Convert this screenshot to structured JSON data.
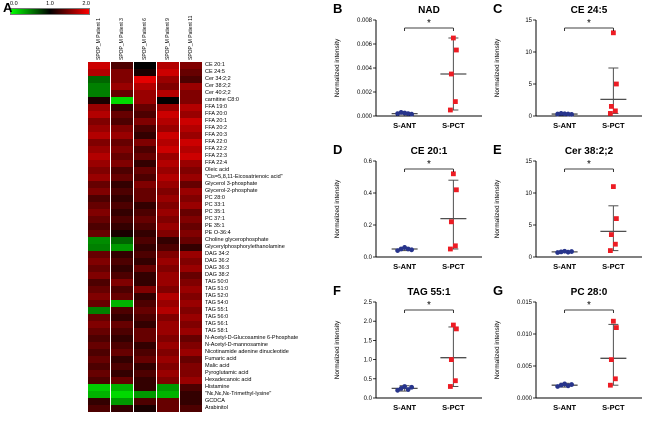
{
  "chart_data": [
    {
      "type": "heatmap",
      "panel_label": "A",
      "colorscale": {
        "labels": [
          "0.0",
          "1.0",
          "2.0"
        ],
        "colors": [
          "#00ff00",
          "#000000",
          "#ff0000"
        ]
      },
      "columns": [
        "SPOP_M Patient 1",
        "SPOP_M Patient 3",
        "SPOP_M Patient 6",
        "SPOP_M Patient 9",
        "SPOP_M Patient 11"
      ],
      "rows": [
        {
          "name": "CE 20:1",
          "values": [
            1.8,
            1.3,
            1.0,
            1.7,
            1.5
          ]
        },
        {
          "name": "CE 24:5",
          "values": [
            1.7,
            1.5,
            1.1,
            1.8,
            1.4
          ]
        },
        {
          "name": "Cer 34:2;2",
          "values": [
            0.6,
            1.5,
            1.9,
            1.6,
            1.3
          ]
        },
        {
          "name": "Cer 38:2;2",
          "values": [
            0.5,
            1.6,
            1.7,
            1.5,
            1.6
          ]
        },
        {
          "name": "Cer 40:2;2",
          "values": [
            0.5,
            1.4,
            1.6,
            1.7,
            1.5
          ]
        },
        {
          "name": "carnitine C8:0",
          "values": [
            1.1,
            0.15,
            1.6,
            1.0,
            1.5
          ]
        },
        {
          "name": "FFA 19:0",
          "values": [
            1.6,
            1.2,
            1.4,
            1.6,
            1.7
          ]
        },
        {
          "name": "FFA 20:0",
          "values": [
            1.7,
            1.4,
            1.3,
            1.8,
            1.6
          ]
        },
        {
          "name": "FFA 20:1",
          "values": [
            1.5,
            1.3,
            1.5,
            1.7,
            1.8
          ]
        },
        {
          "name": "FFA 20:2",
          "values": [
            1.6,
            1.5,
            1.3,
            1.6,
            1.7
          ]
        },
        {
          "name": "FFA 20:3",
          "values": [
            1.7,
            1.6,
            1.2,
            1.8,
            1.6
          ]
        },
        {
          "name": "FFA 22:0",
          "values": [
            1.5,
            1.4,
            1.5,
            1.7,
            1.8
          ]
        },
        {
          "name": "FFA 22:2",
          "values": [
            1.6,
            1.5,
            1.3,
            1.8,
            1.7
          ]
        },
        {
          "name": "FFA 22:3",
          "values": [
            1.7,
            1.4,
            1.4,
            1.6,
            1.8
          ]
        },
        {
          "name": "FFA 22:4",
          "values": [
            1.6,
            1.5,
            1.2,
            1.7,
            1.6
          ]
        },
        {
          "name": "Oleic acid",
          "values": [
            1.5,
            1.3,
            1.4,
            1.6,
            1.5
          ]
        },
        {
          "name": "\"Cis=5,8,11-Eicosatrienoic acid\"",
          "values": [
            1.6,
            1.4,
            1.3,
            1.7,
            1.6
          ]
        },
        {
          "name": "Glycerol 3-phosphate",
          "values": [
            1.4,
            1.2,
            1.5,
            1.6,
            1.4
          ]
        },
        {
          "name": "Glycerol-2-phosphate",
          "values": [
            1.5,
            1.3,
            1.4,
            1.5,
            1.6
          ]
        },
        {
          "name": "PC 28:0",
          "values": [
            1.3,
            1.2,
            1.4,
            1.6,
            1.5
          ]
        },
        {
          "name": "PC 33:1",
          "values": [
            1.4,
            1.3,
            1.2,
            1.5,
            1.6
          ]
        },
        {
          "name": "PC 35:1",
          "values": [
            1.5,
            1.2,
            1.3,
            1.6,
            1.4
          ]
        },
        {
          "name": "PC 37:1",
          "values": [
            1.4,
            1.3,
            1.4,
            1.5,
            1.5
          ]
        },
        {
          "name": "PE 35:1",
          "values": [
            1.3,
            1.2,
            1.3,
            1.6,
            1.4
          ]
        },
        {
          "name": "PE O-36:4",
          "values": [
            1.4,
            1.1,
            1.2,
            1.5,
            1.5
          ]
        },
        {
          "name": "Choline glycerophosphate",
          "values": [
            0.45,
            0.6,
            1.3,
            1.2,
            1.4
          ]
        },
        {
          "name": "Glycerylphosphorylethanolamine",
          "values": [
            0.5,
            0.4,
            1.2,
            1.3,
            1.2
          ]
        },
        {
          "name": "DAG 34:2",
          "values": [
            1.4,
            1.2,
            1.3,
            1.5,
            1.6
          ]
        },
        {
          "name": "DAG 36:2",
          "values": [
            1.5,
            1.3,
            1.2,
            1.6,
            1.5
          ]
        },
        {
          "name": "DAG 36:3",
          "values": [
            1.4,
            1.2,
            1.4,
            1.5,
            1.6
          ]
        },
        {
          "name": "DAG 38:2",
          "values": [
            1.5,
            1.3,
            1.2,
            1.6,
            1.4
          ]
        },
        {
          "name": "TAG 50:0",
          "values": [
            1.3,
            1.5,
            1.2,
            1.6,
            1.5
          ]
        },
        {
          "name": "TAG 51:0",
          "values": [
            1.4,
            1.3,
            1.5,
            1.5,
            1.6
          ]
        },
        {
          "name": "TAG 52:0",
          "values": [
            1.5,
            1.4,
            1.2,
            1.7,
            1.5
          ]
        },
        {
          "name": "TAG 54:0",
          "values": [
            1.4,
            0.3,
            1.3,
            1.6,
            1.6
          ]
        },
        {
          "name": "TAG 55:1",
          "values": [
            0.5,
            1.3,
            1.4,
            1.7,
            1.5
          ]
        },
        {
          "name": "TAG 56:0",
          "values": [
            1.4,
            1.2,
            1.3,
            1.5,
            1.6
          ]
        },
        {
          "name": "TAG 56:1",
          "values": [
            1.5,
            1.4,
            1.2,
            1.6,
            1.5
          ]
        },
        {
          "name": "TAG 58:1",
          "values": [
            1.4,
            1.3,
            1.4,
            1.6,
            1.6
          ]
        },
        {
          "name": "N-Acetyl-D-Glucosamine 6-Phosphate",
          "values": [
            1.3,
            1.2,
            1.4,
            1.5,
            1.4
          ]
        },
        {
          "name": "N-Acetyl-D-mannosamine",
          "values": [
            1.4,
            1.3,
            1.2,
            1.6,
            1.5
          ]
        },
        {
          "name": "Nicotinamide adenine dinucleotide",
          "values": [
            1.3,
            1.4,
            1.3,
            1.5,
            1.6
          ]
        },
        {
          "name": "Fumaric acid",
          "values": [
            1.4,
            1.2,
            1.4,
            1.6,
            1.4
          ]
        },
        {
          "name": "Malic acid",
          "values": [
            1.3,
            1.3,
            1.2,
            1.5,
            1.5
          ]
        },
        {
          "name": "Pyroglutamic acid",
          "values": [
            1.4,
            1.2,
            1.3,
            1.6,
            1.5
          ]
        },
        {
          "name": "Hexadecanoic acid",
          "values": [
            1.3,
            1.4,
            1.2,
            1.5,
            1.6
          ]
        },
        {
          "name": "Histamine",
          "values": [
            0.2,
            0.3,
            1.2,
            0.4,
            1.3
          ]
        },
        {
          "name": "\"Nε,Nε,Nε-Trimethyl-lysine\"",
          "values": [
            0.3,
            0.15,
            0.4,
            0.3,
            1.2
          ]
        },
        {
          "name": "GCDCA",
          "values": [
            1.2,
            0.4,
            1.3,
            1.4,
            1.2
          ]
        },
        {
          "name": "Arabinitol",
          "values": [
            1.3,
            1.2,
            1.1,
            1.4,
            1.3
          ]
        }
      ]
    },
    {
      "type": "scatter",
      "panel_label": "B",
      "title": "NAD",
      "ylabel": "Normalized intensity",
      "significance": "*",
      "groups": [
        "S-ANT",
        "S-PCT"
      ],
      "ymin": 0,
      "ymax": 0.008,
      "yticks": [
        0,
        0.002,
        0.004,
        0.006,
        0.008
      ],
      "ytick_labels": [
        "0.000",
        "0.002",
        "0.004",
        "0.006",
        "0.008"
      ],
      "errorbar_color": "#4f4f4f",
      "series": [
        {
          "name": "S-ANT",
          "marker": "circle",
          "color": "#27348b",
          "values": [
            0.0002,
            0.0003,
            0.00025,
            0.0002,
            0.00015
          ],
          "median": 0.0002,
          "whisker_lo": 0.00015,
          "whisker_hi": 0.0003
        },
        {
          "name": "S-PCT",
          "marker": "square",
          "color": "#ed1c24",
          "values": [
            0.0005,
            0.0012,
            0.0035,
            0.0055,
            0.0065
          ],
          "median": 0.0035,
          "whisker_lo": 0.0005,
          "whisker_hi": 0.0065
        }
      ]
    },
    {
      "type": "scatter",
      "panel_label": "C",
      "title": "CE 24:5",
      "ylabel": "Normalized intensity",
      "significance": "*",
      "groups": [
        "S-ANT",
        "S-PCT"
      ],
      "ymin": 0,
      "ymax": 15,
      "yticks": [
        0,
        5,
        10,
        15
      ],
      "ytick_labels": [
        "0",
        "5",
        "10",
        "15"
      ],
      "errorbar_color": "#4f4f4f",
      "series": [
        {
          "name": "S-ANT",
          "marker": "circle",
          "color": "#27348b",
          "values": [
            0.3,
            0.4,
            0.35,
            0.3,
            0.25
          ],
          "median": 0.3,
          "whisker_lo": 0.25,
          "whisker_hi": 0.4
        },
        {
          "name": "S-PCT",
          "marker": "square",
          "color": "#ed1c24",
          "values": [
            0.4,
            0.8,
            1.5,
            5.0,
            13.0
          ],
          "median": 2.6,
          "whisker_lo": 0.4,
          "whisker_hi": 7.5
        }
      ]
    },
    {
      "type": "scatter",
      "panel_label": "D",
      "title": "CE 20:1",
      "ylabel": "Normalized intensity",
      "significance": "*",
      "groups": [
        "S-ANT",
        "S-PCT"
      ],
      "ymin": 0,
      "ymax": 0.6,
      "yticks": [
        0,
        0.2,
        0.4,
        0.6
      ],
      "ytick_labels": [
        "0.0",
        "0.2",
        "0.4",
        "0.6"
      ],
      "errorbar_color": "#4f4f4f",
      "series": [
        {
          "name": "S-ANT",
          "marker": "circle",
          "color": "#27348b",
          "values": [
            0.04,
            0.05,
            0.06,
            0.05,
            0.045
          ],
          "median": 0.05,
          "whisker_lo": 0.04,
          "whisker_hi": 0.06
        },
        {
          "name": "S-PCT",
          "marker": "square",
          "color": "#ed1c24",
          "values": [
            0.05,
            0.07,
            0.22,
            0.42,
            0.52
          ],
          "median": 0.24,
          "whisker_lo": 0.05,
          "whisker_hi": 0.48
        }
      ]
    },
    {
      "type": "scatter",
      "panel_label": "E",
      "title": "Cer 38:2;2",
      "ylabel": "Normalized intensity",
      "significance": "*",
      "groups": [
        "S-ANT",
        "S-PCT"
      ],
      "ymin": 0,
      "ymax": 15,
      "yticks": [
        0,
        5,
        10,
        15
      ],
      "ytick_labels": [
        "0",
        "5",
        "10",
        "15"
      ],
      "errorbar_color": "#4f4f4f",
      "series": [
        {
          "name": "S-ANT",
          "marker": "circle",
          "color": "#27348b",
          "values": [
            0.7,
            0.8,
            0.9,
            0.75,
            0.85
          ],
          "median": 0.8,
          "whisker_lo": 0.7,
          "whisker_hi": 0.9
        },
        {
          "name": "S-PCT",
          "marker": "square",
          "color": "#ed1c24",
          "values": [
            1.0,
            2.0,
            3.5,
            6.0,
            11.0
          ],
          "median": 4.0,
          "whisker_lo": 1.0,
          "whisker_hi": 8.0
        }
      ]
    },
    {
      "type": "scatter",
      "panel_label": "F",
      "title": "TAG 55:1",
      "ylabel": "Normalized intensity",
      "significance": "*",
      "groups": [
        "S-ANT",
        "S-PCT"
      ],
      "ymin": 0,
      "ymax": 2.5,
      "yticks": [
        0,
        0.5,
        1.0,
        1.5,
        2.0,
        2.5
      ],
      "ytick_labels": [
        "0.0",
        "0.5",
        "1.0",
        "1.5",
        "2.0",
        "2.5"
      ],
      "errorbar_color": "#4f4f4f",
      "series": [
        {
          "name": "S-ANT",
          "marker": "circle",
          "color": "#27348b",
          "values": [
            0.2,
            0.25,
            0.3,
            0.22,
            0.28
          ],
          "median": 0.25,
          "whisker_lo": 0.18,
          "whisker_hi": 0.32
        },
        {
          "name": "S-PCT",
          "marker": "square",
          "color": "#ed1c24",
          "values": [
            0.3,
            0.45,
            1.0,
            1.8,
            1.9
          ],
          "median": 1.05,
          "whisker_lo": 0.3,
          "whisker_hi": 1.85
        }
      ]
    },
    {
      "type": "scatter",
      "panel_label": "G",
      "title": "PC 28:0",
      "ylabel": "Normalized intensity",
      "significance": "*",
      "groups": [
        "S-ANT",
        "S-PCT"
      ],
      "ymin": 0,
      "ymax": 0.015,
      "yticks": [
        0,
        0.005,
        0.01,
        0.015
      ],
      "ytick_labels": [
        "0.000",
        "0.005",
        "0.010",
        "0.015"
      ],
      "errorbar_color": "#4f4f4f",
      "series": [
        {
          "name": "S-ANT",
          "marker": "circle",
          "color": "#27348b",
          "values": [
            0.0018,
            0.002,
            0.0022,
            0.0019,
            0.0021
          ],
          "median": 0.002,
          "whisker_lo": 0.0017,
          "whisker_hi": 0.0023
        },
        {
          "name": "S-PCT",
          "marker": "square",
          "color": "#ed1c24",
          "values": [
            0.002,
            0.003,
            0.006,
            0.011,
            0.012
          ],
          "median": 0.0062,
          "whisker_lo": 0.002,
          "whisker_hi": 0.0115
        }
      ]
    }
  ]
}
